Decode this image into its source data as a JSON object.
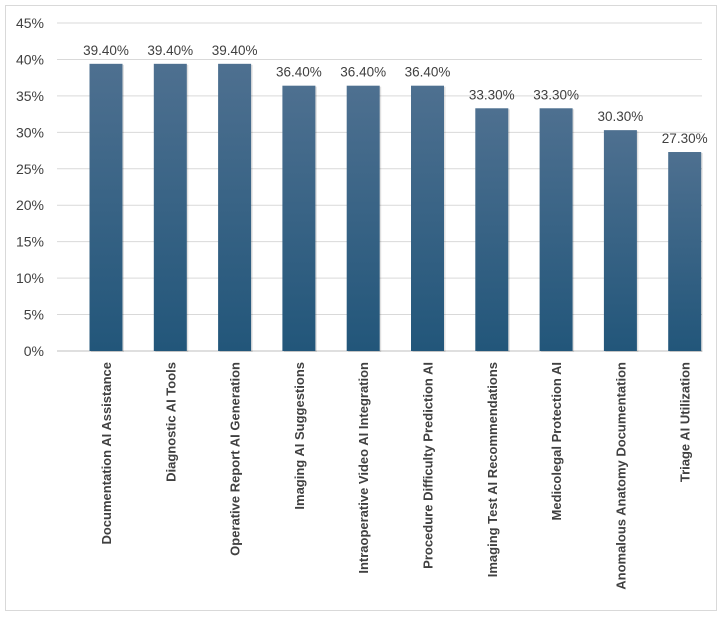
{
  "chart_data": {
    "type": "bar",
    "categories": [
      "Documentation AI Assistance",
      "Diagnostic AI Tools",
      "Operative Report AI Generation",
      "Imaging AI Suggestions",
      "Intraoperative Video AI Integration",
      "Procedure Difficulty Prediction AI",
      "Imaging Test AI Recommendations",
      "Medicolegal Protection AI",
      "Anomalous Anatomy Documentation",
      "Triage AI Utilization"
    ],
    "values": [
      39.4,
      39.4,
      39.4,
      36.4,
      36.4,
      36.4,
      33.3,
      33.3,
      30.3,
      27.3
    ],
    "data_labels": [
      "39.40%",
      "39.40%",
      "39.40%",
      "36.40%",
      "36.40%",
      "36.40%",
      "33.30%",
      "33.30%",
      "30.30%",
      "27.30%"
    ],
    "yticks": [
      "0%",
      "5%",
      "10%",
      "15%",
      "20%",
      "25%",
      "30%",
      "35%",
      "40%",
      "45%"
    ],
    "ylim": [
      0,
      45
    ],
    "grid": true,
    "legend": "none",
    "colors": {
      "bar_top": "#4e7090",
      "bar_bottom": "#22567a"
    }
  }
}
